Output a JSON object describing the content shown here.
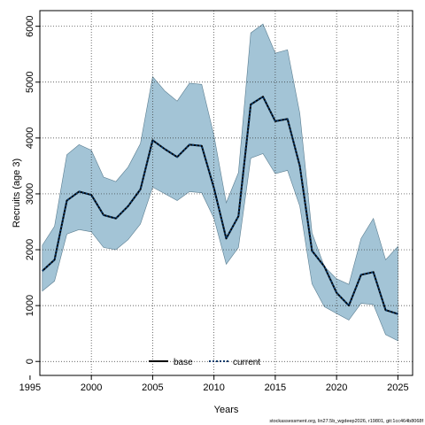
{
  "chart_data": {
    "type": "line",
    "title": "",
    "xlabel": "Years",
    "ylabel": "Recruits (age 3)",
    "xlim": [
      1995.8,
      2026.2
    ],
    "ylim": [
      -250,
      6280
    ],
    "xticks": [
      1995,
      2000,
      2005,
      2010,
      2015,
      2020,
      2025
    ],
    "yticks": [
      0,
      1000,
      2000,
      3000,
      4000,
      5000,
      6000
    ],
    "grid": true,
    "legend_position": "bottom-center",
    "x": [
      1996,
      1997,
      1998,
      1999,
      2000,
      2001,
      2002,
      2003,
      2004,
      2005,
      2006,
      2007,
      2008,
      2009,
      2010,
      2011,
      2012,
      2013,
      2014,
      2015,
      2016,
      2017,
      2018,
      2019,
      2020,
      2021,
      2022,
      2023,
      2024,
      2025
    ],
    "series": [
      {
        "name": "base",
        "values": [
          1620,
          1820,
          2880,
          3040,
          2980,
          2620,
          2560,
          2780,
          3080,
          3960,
          3800,
          3660,
          3880,
          3860,
          3100,
          2200,
          2600,
          4600,
          4740,
          4300,
          4340,
          3500,
          1980,
          1700,
          1230,
          1000,
          1550,
          1600,
          920,
          850
        ],
        "style": "solid"
      },
      {
        "name": "current",
        "values": [
          1620,
          1820,
          2880,
          3040,
          2980,
          2620,
          2560,
          2780,
          3080,
          3960,
          3800,
          3660,
          3880,
          3860,
          3100,
          2200,
          2600,
          4600,
          4740,
          4300,
          4340,
          3500,
          1980,
          1700,
          1230,
          1000,
          1550,
          1600,
          920,
          850
        ],
        "style": "dotted"
      }
    ],
    "interval_upper": [
      2080,
      2420,
      3700,
      3880,
      3780,
      3300,
      3220,
      3480,
      3900,
      5100,
      4840,
      4660,
      4980,
      4960,
      4040,
      2840,
      3380,
      5880,
      6040,
      5520,
      5580,
      4440,
      2300,
      1700,
      1480,
      1380,
      2200,
      2560,
      1820,
      2060
    ],
    "interval_lower": [
      1260,
      1440,
      2280,
      2360,
      2320,
      2040,
      2000,
      2180,
      2460,
      3120,
      3000,
      2880,
      3040,
      3020,
      2560,
      1740,
      2040,
      3640,
      3720,
      3360,
      3420,
      2780,
      1390,
      980,
      860,
      740,
      1040,
      1020,
      480,
      370
    ],
    "colors": {
      "interval_fill": "#a3c4d6",
      "interval_edge": "#5a7d90",
      "base_line": "#000000",
      "current_line": "#0a3a6b",
      "grid": "#333333"
    }
  },
  "legend": {
    "base_label": "base",
    "current_label": "current"
  },
  "footer": {
    "text": "stockassessment.org, lin27.5b_wgdeep2026, r19801, git:1cc464b8068f"
  }
}
